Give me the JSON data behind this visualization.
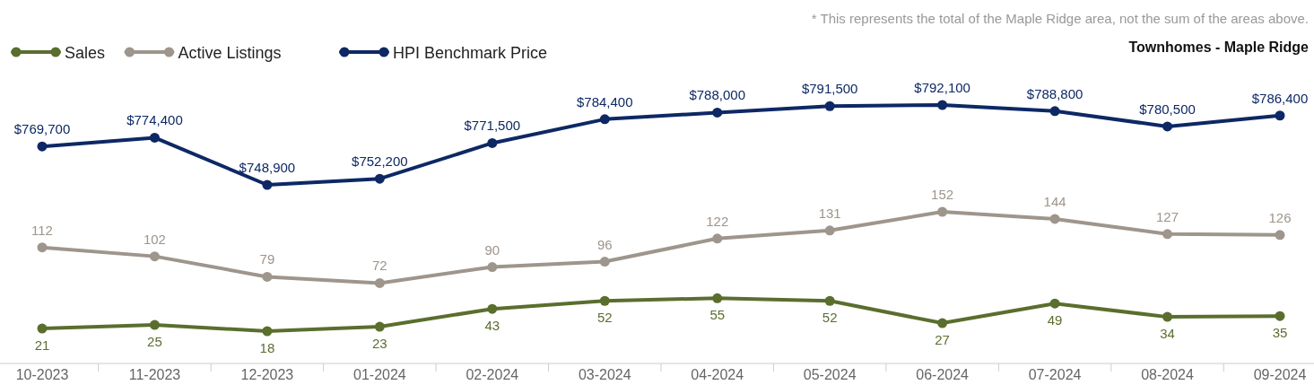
{
  "chart_data": [
    {
      "type": "line",
      "title": "Townhomes - Maple Ridge",
      "annotations": [
        "* This represents the total of the Maple Ridge area, not the sum of the areas above."
      ],
      "categories": [
        null,
        null,
        null,
        null,
        null,
        null,
        null,
        null,
        null,
        null,
        null,
        null
      ],
      "series": [
        {
          "name": "HPI Benchmark Price",
          "color": "#0d2864",
          "values": [
            769700,
            774400,
            748900,
            752200,
            771500,
            784400,
            788000,
            791500,
            792100,
            788800,
            780500,
            786400
          ],
          "value_labels": [
            "$769,700",
            "$774,400",
            "$748,900",
            "$752,200",
            "$771,500",
            "$784,400",
            "$788,000",
            "$791,500",
            "$792,100",
            "$788,800",
            "$780,500",
            "$786,400"
          ]
        }
      ],
      "data_labels": true,
      "legend": "top left",
      "marker": "circle",
      "line_style": "solid",
      "grid": false
    },
    {
      "type": "line",
      "categories": [
        "10-2023",
        "11-2023",
        "12-2023",
        "01-2024",
        "02-2024",
        "03-2024",
        "04-2024",
        "05-2024",
        "06-2024",
        "07-2024",
        "08-2024",
        "09-2024"
      ],
      "series": [
        {
          "name": "Sales",
          "color": "#5a6e2e",
          "values": [
            21,
            25,
            18,
            23,
            43,
            52,
            55,
            52,
            27,
            49,
            34,
            35
          ]
        },
        {
          "name": "Active Listings",
          "color": "#9e958c",
          "values": [
            112,
            102,
            79,
            72,
            90,
            96,
            122,
            131,
            152,
            144,
            127,
            126
          ]
        }
      ],
      "tick_labels": "x",
      "data_labels": true,
      "legend": "top left",
      "marker": "circle",
      "line_style": "solid",
      "grid": false
    }
  ]
}
